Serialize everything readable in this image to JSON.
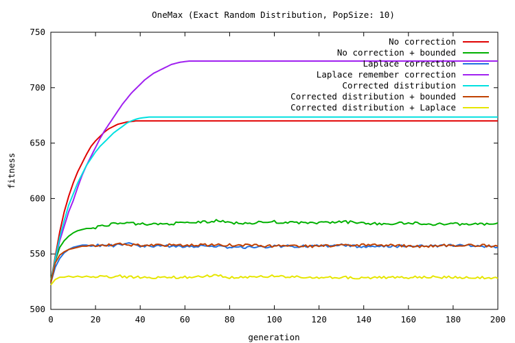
{
  "chart_data": {
    "type": "line",
    "title": "OneMax (Exact Random Distribution, PopSize: 10)",
    "xlabel": "generation",
    "ylabel": "fitness",
    "xlim": [
      0,
      200
    ],
    "ylim": [
      500,
      750
    ],
    "x_ticks": [
      0,
      20,
      40,
      60,
      80,
      100,
      120,
      140,
      160,
      180,
      200
    ],
    "y_ticks": [
      500,
      550,
      600,
      650,
      700,
      750
    ],
    "legend_position": "top-right",
    "grid": false,
    "series": [
      {
        "name": "No correction",
        "color": "#e00000",
        "x": [
          0,
          2,
          4,
          6,
          8,
          10,
          12,
          14,
          16,
          18,
          20,
          22,
          24,
          26,
          28,
          30,
          32,
          34,
          36,
          38,
          40,
          200
        ],
        "y": [
          525,
          548,
          570,
          588,
          602,
          614,
          624,
          632,
          640,
          647,
          652,
          656,
          660,
          663,
          665,
          667,
          668,
          669,
          669.5,
          670,
          670,
          670
        ]
      },
      {
        "name": "No correction + bounded",
        "color": "#00b000",
        "x": [
          0,
          2,
          4,
          6,
          8,
          10,
          12,
          14,
          16,
          18,
          20,
          24,
          28,
          30,
          40,
          50,
          60,
          70,
          75,
          80,
          90,
          100,
          110,
          120,
          130,
          140,
          150,
          160,
          170,
          180,
          190,
          195,
          200
        ],
        "y": [
          526,
          544,
          556,
          562,
          566,
          569,
          571,
          572,
          573,
          573,
          574,
          576,
          577,
          578,
          577,
          577,
          578,
          579,
          580,
          578,
          578,
          579,
          578,
          578,
          579,
          578,
          577,
          578,
          577,
          577,
          577,
          577,
          578
        ]
      },
      {
        "name": "Laplace correction",
        "color": "#2070e0",
        "x": [
          0,
          2,
          4,
          6,
          8,
          10,
          12,
          14,
          16,
          18,
          20,
          25,
          30,
          35,
          40,
          50,
          60,
          70,
          80,
          90,
          100,
          110,
          120,
          130,
          140,
          150,
          160,
          170,
          180,
          190,
          200
        ],
        "y": [
          524,
          538,
          546,
          551,
          554,
          556,
          557,
          558,
          558,
          557,
          558,
          557,
          558,
          560,
          557,
          557,
          557,
          557,
          556,
          556,
          557,
          557,
          557,
          558,
          556,
          557,
          557,
          557,
          558,
          557,
          556
        ]
      },
      {
        "name": "Laplace remember correction",
        "color": "#a020f0",
        "x": [
          0,
          2,
          4,
          6,
          8,
          10,
          12,
          14,
          16,
          18,
          20,
          22,
          24,
          26,
          28,
          30,
          32,
          34,
          36,
          38,
          40,
          42,
          44,
          46,
          48,
          50,
          52,
          54,
          56,
          58,
          60,
          62,
          200
        ],
        "y": [
          524,
          545,
          562,
          575,
          588,
          598,
          610,
          621,
          630,
          638,
          646,
          654,
          661,
          667,
          673,
          679,
          685,
          690,
          695,
          699,
          703,
          707,
          710,
          713,
          715,
          717,
          719,
          721,
          722,
          723,
          723.5,
          724,
          724
        ]
      },
      {
        "name": "Corrected distribution",
        "color": "#00e0e0",
        "x": [
          0,
          2,
          4,
          6,
          8,
          10,
          12,
          14,
          16,
          18,
          20,
          22,
          24,
          26,
          28,
          30,
          32,
          34,
          36,
          38,
          40,
          42,
          44,
          200
        ],
        "y": [
          524,
          546,
          565,
          580,
          594,
          604,
          614,
          622,
          630,
          636,
          642,
          647,
          651,
          655,
          659,
          662,
          665,
          668,
          670,
          671.5,
          672.5,
          673,
          673.5,
          673.5
        ]
      },
      {
        "name": "Corrected distribution + bounded",
        "color": "#c04000",
        "x": [
          0,
          2,
          4,
          6,
          8,
          10,
          12,
          14,
          16,
          18,
          20,
          25,
          30,
          35,
          40,
          50,
          60,
          70,
          80,
          90,
          100,
          110,
          120,
          130,
          140,
          150,
          160,
          170,
          180,
          190,
          200
        ],
        "y": [
          524,
          542,
          549,
          552,
          554,
          555,
          556,
          557,
          557,
          558,
          558,
          558,
          559,
          558,
          558,
          558,
          558,
          558,
          558,
          558,
          557,
          557,
          557,
          558,
          558,
          558,
          557,
          557,
          558,
          558,
          557
        ]
      },
      {
        "name": "Corrected distribution + Laplace",
        "color": "#e6e600",
        "x": [
          0,
          2,
          4,
          6,
          8,
          10,
          12,
          14,
          16,
          18,
          20,
          25,
          30,
          35,
          40,
          50,
          60,
          70,
          75,
          80,
          90,
          100,
          110,
          120,
          130,
          140,
          150,
          160,
          170,
          180,
          190,
          200
        ],
        "y": [
          522,
          527,
          529,
          529,
          530,
          529,
          530,
          529,
          530,
          529,
          530,
          529,
          530,
          529,
          529,
          529,
          529,
          530,
          531,
          529,
          529,
          530,
          529,
          529,
          529,
          528,
          529,
          529,
          529,
          529,
          529,
          528
        ]
      }
    ]
  }
}
